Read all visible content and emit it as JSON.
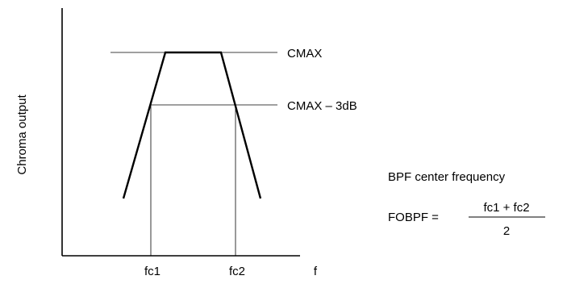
{
  "axes": {
    "y_label": "Chroma output",
    "x_label": "f"
  },
  "levels": {
    "cmax": "CMAX",
    "cmax_3db": "CMAX – 3dB"
  },
  "ticks": {
    "fc1": "fc1",
    "fc2": "fc2"
  },
  "formula": {
    "caption": "BPF center frequency",
    "lhs": "FOBPF =",
    "numerator": "fc1 + fc2",
    "denominator": "2"
  }
}
